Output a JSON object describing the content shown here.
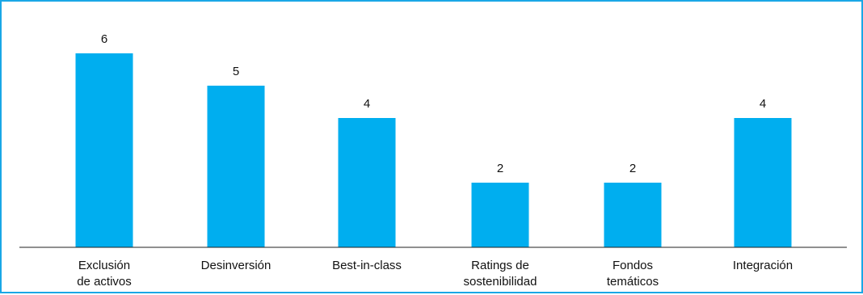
{
  "chart_data": {
    "type": "bar",
    "title": "",
    "xlabel": "",
    "ylabel": "",
    "categories": [
      [
        "Exclusión",
        "de activos"
      ],
      [
        "Desinversión"
      ],
      [
        "Best-in-class"
      ],
      [
        "Ratings de",
        "sostenibilidad"
      ],
      [
        "Fondos",
        "temáticos"
      ],
      [
        "Integración"
      ]
    ],
    "values": [
      6,
      5,
      4,
      2,
      2,
      4
    ],
    "data_labels": [
      "6",
      "5",
      "4",
      "2",
      "2",
      "4"
    ],
    "ylim": [
      0,
      6
    ],
    "grid": false,
    "legend": "none",
    "colors": {
      "bar": "#00aeef",
      "frame": "#1aa7e6",
      "axis": "#222222",
      "text": "#111111"
    }
  }
}
